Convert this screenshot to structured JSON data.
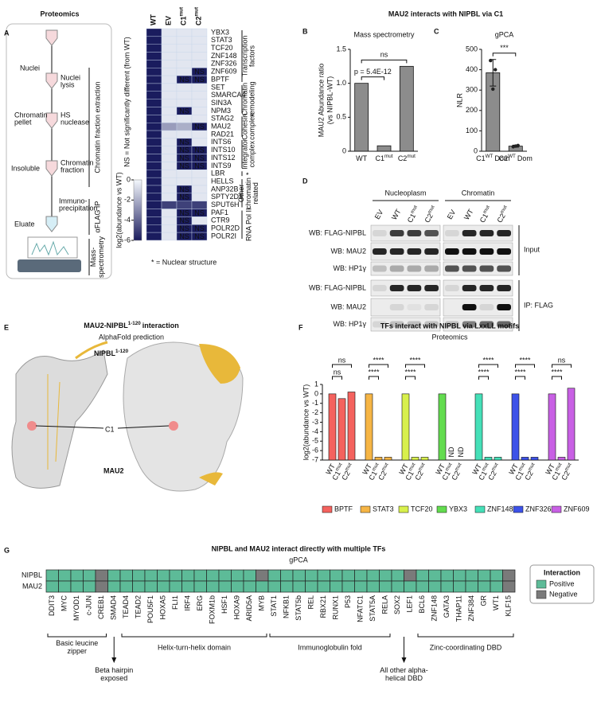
{
  "panel_a": {
    "letter": "A",
    "title": "Proteomics",
    "workflow": {
      "steps": [
        "Nuclei",
        [
          "Chromatin",
          "pellet"
        ],
        "Insoluble",
        "Eluate"
      ],
      "arrows": [
        [
          "Nuclei",
          "lysis"
        ],
        [
          "HS",
          "nuclease"
        ],
        [
          "Chromatin",
          "fraction"
        ],
        [
          "Immuno-",
          "precipitation"
        ]
      ],
      "brackets": [
        "Chromatin fraction extraction",
        "αFLAG IP",
        [
          "Mass-",
          "spectrometry"
        ]
      ]
    },
    "heatmap": {
      "columns": [
        "WT",
        "EV",
        "C1",
        "C2"
      ],
      "column_sup": [
        null,
        null,
        "mut",
        "mut"
      ],
      "rows": [
        "YBX3",
        "STAT3",
        "TCF20",
        "ZNF148",
        "ZNF326",
        "ZNF609",
        "BPTF",
        "SET",
        "SMARCA4",
        "SIN3A",
        "NPM3",
        "STAG2",
        "MAU2",
        "RAD21",
        "INTS6",
        "INTS10",
        "INTS12",
        "INTS9",
        "LBR",
        "HELLS",
        "ANP32B",
        "SPTY2D1",
        "SPUT6H",
        "PAF1",
        "CTR9",
        "POLR2D",
        "POLR2I"
      ],
      "values": [
        [
          -6,
          -0.5,
          -0.5,
          -0.5
        ],
        [
          -6,
          -0.5,
          -0.5,
          -0.5
        ],
        [
          -6,
          -0.5,
          -0.5,
          -0.5
        ],
        [
          -6,
          -0.5,
          -0.5,
          -0.5
        ],
        [
          -6,
          -0.5,
          -0.5,
          -0.5
        ],
        [
          -6,
          -0.5,
          -0.5,
          -6
        ],
        [
          -6,
          -0.5,
          -6,
          -6
        ],
        [
          -6,
          -0.5,
          -0.5,
          -0.5
        ],
        [
          -6,
          -0.5,
          -0.5,
          -0.5
        ],
        [
          -6,
          -0.5,
          -0.5,
          -0.5
        ],
        [
          -6,
          -0.5,
          -6,
          -0.5
        ],
        [
          -6,
          -0.5,
          -0.5,
          -0.5
        ],
        [
          -6,
          -2.5,
          -2,
          -6
        ],
        [
          -6,
          -0.5,
          -0.5,
          -0.5
        ],
        [
          -6,
          -0.5,
          -6,
          -0.5
        ],
        [
          -6,
          -0.5,
          -6,
          -6
        ],
        [
          -6,
          -0.5,
          -6,
          -6
        ],
        [
          -6,
          -0.5,
          -6,
          -6
        ],
        [
          -6,
          -0.5,
          -0.5,
          -0.5
        ],
        [
          -6,
          -0.5,
          -0.5,
          -0.5
        ],
        [
          -6,
          -0.5,
          -6,
          -0.5
        ],
        [
          -6,
          -0.5,
          -6,
          -0.5
        ],
        [
          -6,
          -5,
          -5,
          -5
        ],
        [
          -6,
          -0.5,
          -6,
          -6
        ],
        [
          -6,
          -0.5,
          -6,
          -0.5
        ],
        [
          -6,
          -0.5,
          -6,
          -6
        ],
        [
          -6,
          -0.5,
          -6,
          -6
        ]
      ],
      "cell_labels": [
        [
          null,
          null,
          null,
          null
        ],
        [
          null,
          null,
          null,
          null
        ],
        [
          null,
          null,
          null,
          null
        ],
        [
          null,
          null,
          null,
          null
        ],
        [
          null,
          null,
          null,
          null
        ],
        [
          null,
          null,
          null,
          "NS"
        ],
        [
          null,
          null,
          "NS",
          "NS"
        ],
        [
          null,
          null,
          null,
          null
        ],
        [
          null,
          null,
          null,
          null
        ],
        [
          null,
          null,
          null,
          null
        ],
        [
          null,
          null,
          "NS",
          null
        ],
        [
          null,
          null,
          null,
          null
        ],
        [
          null,
          null,
          null,
          "NS"
        ],
        [
          null,
          null,
          null,
          null
        ],
        [
          null,
          null,
          "NS",
          null
        ],
        [
          null,
          null,
          "NS",
          "NS"
        ],
        [
          null,
          null,
          "NS",
          "NS"
        ],
        [
          null,
          null,
          "NS",
          "NS"
        ],
        [
          null,
          null,
          null,
          null
        ],
        [
          null,
          null,
          null,
          null
        ],
        [
          null,
          null,
          "NS",
          null
        ],
        [
          null,
          null,
          "NS",
          null
        ],
        [
          null,
          null,
          null,
          null
        ],
        [
          null,
          null,
          "NS",
          "NS"
        ],
        [
          null,
          null,
          "NS",
          null
        ],
        [
          null,
          null,
          "NS",
          "NS"
        ],
        [
          null,
          null,
          "NS",
          "NS"
        ]
      ],
      "groups": [
        {
          "label": [
            "Transcription",
            "factors"
          ],
          "size": 7
        },
        {
          "label": [
            "Chromatin",
            "remodeling"
          ],
          "size": 4
        },
        {
          "label": [
            "Cohesin",
            "complex"
          ],
          "size": 3
        },
        {
          "label": [
            "Integrator",
            "complex"
          ],
          "size": 4
        },
        {
          "label": "*",
          "size": 1
        },
        {
          "label": [
            "Other",
            "chromatin",
            "related"
          ],
          "size": 4
        },
        {
          "label": "RNA Pol II",
          "size": 4
        }
      ],
      "colorbar": {
        "label": "log2(abundance vs WT)",
        "lim": [
          -6,
          0
        ],
        "ticks": [
          0,
          -2,
          -4,
          -6
        ]
      },
      "ns_note": "NS = Not significantly different (from WT)",
      "footnote": "* = Nuclear structure"
    }
  },
  "header_bc": "MAU2 interacts with NIPBL via C1",
  "panel_b": {
    "letter": "B",
    "chart_data": {
      "type": "bar",
      "title": "Mass spectrometry",
      "ylabel": [
        "MAU2 Abundance ratio",
        "(vs NIPBL-WT)"
      ],
      "categories": [
        "WT",
        "C1",
        "C2"
      ],
      "category_sup": [
        null,
        "mut",
        "mut"
      ],
      "values": [
        1.0,
        0.08,
        1.25
      ],
      "color": "#8c8c8c",
      "ylim": [
        0,
        1.5
      ],
      "yticks": [
        0,
        0.5,
        {
          "value": 1,
          "label": "1.0"
        },
        1.5
      ],
      "brackets": [
        {
          "label": "ns",
          "from": 0,
          "to": 2
        },
        {
          "label": "p = 5.4E-12",
          "from": 0,
          "to": 1
        }
      ]
    }
  },
  "panel_c": {
    "letter": "C",
    "chart_data": {
      "type": "bar",
      "title": "gPCA",
      "ylabel": "NLR",
      "categories": [
        "C1",
        "C2"
      ],
      "category_sup": [
        "WT",
        "WT"
      ],
      "category_tail": [
        "Dom",
        "Dom"
      ],
      "values": [
        385,
        25
      ],
      "errors": [
        65,
        5
      ],
      "points": [
        [
          445,
          305,
          400
        ],
        [
          22,
          25,
          28
        ]
      ],
      "color": "#8c8c8c",
      "ylim": [
        0,
        500
      ],
      "yticks": [
        0,
        100,
        200,
        300,
        400,
        500
      ],
      "brackets": [
        {
          "label": "***",
          "from": 0,
          "to": 1
        }
      ]
    }
  },
  "panel_d": {
    "letter": "D",
    "fractions": [
      "Nucleoplasm",
      "Chromatin"
    ],
    "lanes": [
      "EV",
      "WT",
      "C1",
      "C2"
    ],
    "lane_sup": [
      null,
      null,
      "mut",
      "mut"
    ],
    "blots": [
      "WB: FLAG-NIPBL",
      "WB: MAU2",
      "WB: HP1γ"
    ],
    "sections": [
      "Input",
      "IP: FLAG"
    ]
  },
  "panel_e": {
    "letter": "E",
    "title": "MAU2-NIPBL",
    "title_sup": "1-120",
    "title_tail": "interaction",
    "subtitle": "AlphaFold prediction",
    "nipbl": "NIPBL",
    "nipbl_sup": "1-120",
    "c1": "C1",
    "mau2": "MAU2"
  },
  "panel_f": {
    "letter": "F",
    "chart_data": {
      "type": "bar",
      "title": "TFs interact with NIPBL via LxxLL motifs",
      "subtitle": "Proteomics",
      "ylabel": "log2(abundance vs WT)",
      "categories": [
        "WT",
        "C1",
        "C2"
      ],
      "category_sup": [
        null,
        "mut",
        "mut"
      ],
      "ylim": [
        -7,
        1
      ],
      "yticks": [
        1,
        0,
        -1,
        -2,
        -3,
        -4,
        -5,
        -6,
        -7
      ],
      "legend": "bottom",
      "series": [
        {
          "name": "BPTF",
          "color": "#f4625e",
          "values": [
            0,
            -0.5,
            0.2
          ],
          "brackets": [
            {
              "label": "ns",
              "from": 0,
              "to": 2
            },
            {
              "label": "ns",
              "from": 0,
              "to": 1
            }
          ]
        },
        {
          "name": "STAT3",
          "color": "#f6b545",
          "values": [
            0,
            -6.7,
            -6.7
          ],
          "brackets": [
            {
              "label": "****",
              "from": 0,
              "to": 2
            },
            {
              "label": "****",
              "from": 0,
              "to": 1
            }
          ]
        },
        {
          "name": "TCF20",
          "color": "#d8f04c",
          "values": [
            0,
            -6.7,
            -6.7
          ],
          "brackets": [
            {
              "label": "****",
              "from": 0,
              "to": 2
            },
            {
              "label": "****",
              "from": 0,
              "to": 1
            }
          ]
        },
        {
          "name": "YBX3",
          "color": "#63dc4f",
          "values": [
            0,
            null,
            null
          ],
          "value_labels": [
            null,
            "ND",
            "ND"
          ]
        },
        {
          "name": "ZNF148",
          "color": "#45e0b8",
          "values": [
            0,
            -6.7,
            -6.7
          ],
          "brackets": [
            {
              "label": "****",
              "from": 0,
              "to": 2
            },
            {
              "label": "****",
              "from": 0,
              "to": 1
            }
          ]
        },
        {
          "name": "ZNF326",
          "color": "#3d52e8",
          "values": [
            0,
            -6.7,
            -6.7
          ],
          "brackets": [
            {
              "label": "****",
              "from": 0,
              "to": 2
            },
            {
              "label": "****",
              "from": 0,
              "to": 1
            }
          ]
        },
        {
          "name": "ZNF609",
          "color": "#c860e4",
          "values": [
            0,
            -6.7,
            0.6
          ],
          "brackets": [
            {
              "label": "ns",
              "from": 0,
              "to": 2
            },
            {
              "label": "****",
              "from": 0,
              "to": 1
            }
          ]
        }
      ]
    }
  },
  "panel_g": {
    "letter": "G",
    "title": "NIPBL and MAU2 interact directly with multiple TFs",
    "subtitle": "gPCA",
    "rows": [
      "NIPBL",
      "MAU2"
    ],
    "columns": [
      "DDIT3",
      "MYC",
      "MYOD1",
      "c-JUN",
      "CREB1",
      "SMAD4",
      "TEAD4",
      "TEAD2",
      "POU5F1",
      "HOXA5",
      "FLI1",
      "IRF4",
      "ERG",
      "FOXM1b",
      "HSF1",
      "HOXA9",
      "ARID5A",
      "MYB",
      "STAT1",
      "NFKB1",
      "STAT5b",
      "REL",
      "RBX21",
      "RUNX1",
      "P53",
      "NFATC1",
      "STAT5A",
      "RELA",
      "SOX2",
      "LEF1",
      "BCL6",
      "ZNF148",
      "GATA3",
      "THAP11",
      "ZNF384",
      "GR",
      "WT1",
      "KLF15"
    ],
    "cells": [
      [
        0,
        0,
        0,
        0,
        1,
        0,
        0,
        0,
        0,
        0,
        0,
        0,
        0,
        0,
        0,
        0,
        0,
        1,
        0,
        0,
        0,
        0,
        0,
        0,
        0,
        0,
        0,
        0,
        0,
        1,
        0,
        0,
        0,
        0,
        0,
        0,
        0,
        1
      ],
      [
        0,
        0,
        0,
        0,
        1,
        0,
        0,
        0,
        0,
        0,
        0,
        0,
        0,
        0,
        0,
        0,
        0,
        0,
        0,
        0,
        0,
        0,
        0,
        0,
        0,
        0,
        0,
        0,
        0,
        0,
        0,
        0,
        0,
        0,
        0,
        0,
        0,
        1
      ]
    ],
    "legend": {
      "title": "Interaction",
      "entries": [
        {
          "name": "Positive",
          "color": "#5dbb98"
        },
        {
          "name": "Negative",
          "color": "#7a7a7a"
        }
      ]
    },
    "families": [
      {
        "label": [
          "Basic leucine",
          "zipper"
        ],
        "size": 5
      },
      {
        "label": [
          "Beta hairpin",
          "exposed"
        ],
        "size": 1,
        "arrow": true
      },
      {
        "label": "Helix-turn-helix domain",
        "size": 12
      },
      {
        "label": "Immunoglobulin fold",
        "size": 10
      },
      {
        "label": [
          "All other alpha-",
          "helical DBD"
        ],
        "size": 2,
        "arrow": true
      },
      {
        "label": "Zinc-coordinating DBD",
        "size": 8
      }
    ]
  }
}
